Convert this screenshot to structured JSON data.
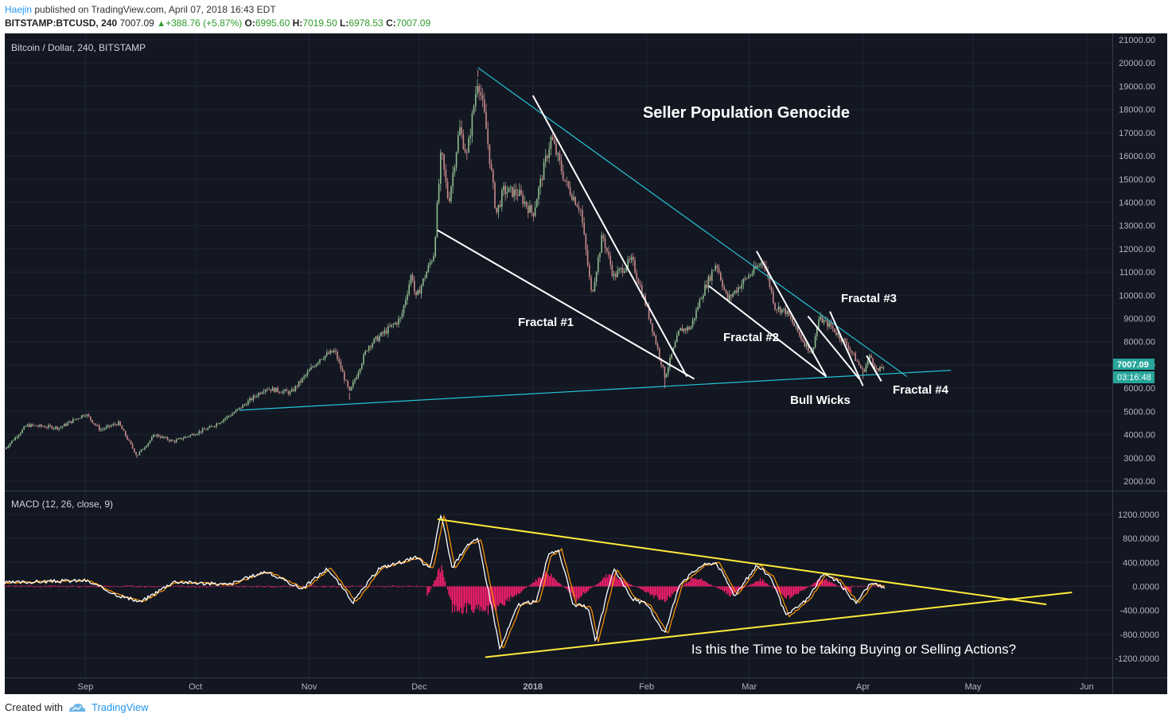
{
  "header": {
    "author": "Haejin",
    "published_text": "published on TradingView.com, April 07, 2018 16:43 EDT",
    "symbol": "BITSTAMP:BTCUSD, 240",
    "last": "7007.09",
    "change": "+388.76 (+5.87%)",
    "open_label": "O:",
    "open": "6995.60",
    "high_label": "H:",
    "high": "7019.50",
    "low_label": "L:",
    "low": "6978.53",
    "close_label": "C:",
    "close": "7007.09"
  },
  "price_pane": {
    "legend": "Bitcoin / Dollar, 240, BITSTAMP",
    "title": "Seller Population Genocide",
    "last_price_tag": "7007.09",
    "countdown_tag": "03:16:48",
    "annotations": [
      "Fractal #1",
      "Fractal #2",
      "Fractal #3",
      "Fractal #4",
      "Bull Wicks"
    ]
  },
  "macd_pane": {
    "legend": "MACD (12, 26, close, 9)",
    "question": "Is this the Time to be taking Buying or Selling Actions?"
  },
  "footer": {
    "created_with": "Created with",
    "brand": "TradingView"
  },
  "colors": {
    "background": "#131722",
    "grid": "#1f2433",
    "candle_up": "#8fbc8f",
    "candle_down": "#c98b8b",
    "trend_white": "#ffffff",
    "trend_cyan": "#26c6da",
    "macd_triangle": "#ffeb3b",
    "macd_line": "#ffffff",
    "signal_line": "#ff9800",
    "histogram": "#ff1f6f",
    "last_price_tag": "#26a69a"
  },
  "chart_data": [
    {
      "type": "candlestick",
      "title": "Seller Population Genocide",
      "series_name": "Bitcoin / Dollar, 240, BITSTAMP",
      "x_tick_labels": [
        "Sep",
        "Oct",
        "Nov",
        "Dec",
        "2018",
        "Feb",
        "Mar",
        "Apr",
        "May",
        "Jun"
      ],
      "y_tick_labels": [
        "2000.00",
        "3000.00",
        "4000.00",
        "5000.00",
        "6000.00",
        "7000.00",
        "8000.00",
        "9000.00",
        "10000.00",
        "11000.00",
        "12000.00",
        "13000.00",
        "14000.00",
        "15000.00",
        "16000.00",
        "17000.00",
        "18000.00",
        "19000.00",
        "20000.00",
        "21000.00"
      ],
      "ylim": [
        1500,
        21000
      ],
      "grid": true,
      "path_points": [
        {
          "date": "2017-08-10",
          "price": 3400
        },
        {
          "date": "2017-08-16",
          "price": 4400
        },
        {
          "date": "2017-08-25",
          "price": 4300
        },
        {
          "date": "2017-09-01",
          "price": 4900
        },
        {
          "date": "2017-09-05",
          "price": 4200
        },
        {
          "date": "2017-09-10",
          "price": 4500
        },
        {
          "date": "2017-09-15",
          "price": 3100
        },
        {
          "date": "2017-09-20",
          "price": 4000
        },
        {
          "date": "2017-09-25",
          "price": 3700
        },
        {
          "date": "2017-10-05",
          "price": 4300
        },
        {
          "date": "2017-10-12",
          "price": 5000
        },
        {
          "date": "2017-10-20",
          "price": 6000
        },
        {
          "date": "2017-10-27",
          "price": 5800
        },
        {
          "date": "2017-11-04",
          "price": 7300
        },
        {
          "date": "2017-11-08",
          "price": 7600
        },
        {
          "date": "2017-11-12",
          "price": 5800
        },
        {
          "date": "2017-11-17",
          "price": 7800
        },
        {
          "date": "2017-11-26",
          "price": 9000
        },
        {
          "date": "2017-11-29",
          "price": 11000
        },
        {
          "date": "2017-11-30",
          "price": 9800
        },
        {
          "date": "2017-12-05",
          "price": 11800
        },
        {
          "date": "2017-12-07",
          "price": 16200
        },
        {
          "date": "2017-12-09",
          "price": 14000
        },
        {
          "date": "2017-12-12",
          "price": 17200
        },
        {
          "date": "2017-12-14",
          "price": 16000
        },
        {
          "date": "2017-12-17",
          "price": 19400
        },
        {
          "date": "2017-12-19",
          "price": 17500
        },
        {
          "date": "2017-12-22",
          "price": 13500
        },
        {
          "date": "2017-12-24",
          "price": 14500
        },
        {
          "date": "2017-12-28",
          "price": 14400
        },
        {
          "date": "2018-01-01",
          "price": 13500
        },
        {
          "date": "2018-01-06",
          "price": 16800
        },
        {
          "date": "2018-01-10",
          "price": 14800
        },
        {
          "date": "2018-01-14",
          "price": 13700
        },
        {
          "date": "2018-01-17",
          "price": 10000
        },
        {
          "date": "2018-01-20",
          "price": 12600
        },
        {
          "date": "2018-01-23",
          "price": 10800
        },
        {
          "date": "2018-01-28",
          "price": 11500
        },
        {
          "date": "2018-02-01",
          "price": 9500
        },
        {
          "date": "2018-02-06",
          "price": 6500
        },
        {
          "date": "2018-02-10",
          "price": 8500
        },
        {
          "date": "2018-02-13",
          "price": 8600
        },
        {
          "date": "2018-02-16",
          "price": 10000
        },
        {
          "date": "2018-02-20",
          "price": 11400
        },
        {
          "date": "2018-02-23",
          "price": 9800
        },
        {
          "date": "2018-02-28",
          "price": 10700
        },
        {
          "date": "2018-03-05",
          "price": 11500
        },
        {
          "date": "2018-03-08",
          "price": 9500
        },
        {
          "date": "2018-03-11",
          "price": 9300
        },
        {
          "date": "2018-03-15",
          "price": 8200
        },
        {
          "date": "2018-03-18",
          "price": 7500
        },
        {
          "date": "2018-03-20",
          "price": 9000
        },
        {
          "date": "2018-03-23",
          "price": 8700
        },
        {
          "date": "2018-03-28",
          "price": 7800
        },
        {
          "date": "2018-04-01",
          "price": 6700
        },
        {
          "date": "2018-04-03",
          "price": 7400
        },
        {
          "date": "2018-04-05",
          "price": 6700
        },
        {
          "date": "2018-04-07",
          "price": 7007.09
        }
      ],
      "wicks": [
        {
          "date": "2017-09-15",
          "price": 3000
        },
        {
          "date": "2017-11-12",
          "price": 5500
        },
        {
          "date": "2017-12-17",
          "price": 19700
        },
        {
          "date": "2018-02-06",
          "price": 6000
        },
        {
          "date": "2018-04-01",
          "price": 6400
        }
      ],
      "trendlines": [
        {
          "name": "cyan-top",
          "points": [
            {
              "date": "2017-12-17",
              "price": 19800
            },
            {
              "date": "2018-04-13",
              "price": 6500
            }
          ]
        },
        {
          "name": "cyan-bottom",
          "points": [
            {
              "date": "2017-10-13",
              "price": 5050
            },
            {
              "date": "2018-04-25",
              "price": 6770
            }
          ]
        },
        {
          "name": "fractal1-lower",
          "points": [
            {
              "date": "2017-12-06",
              "price": 12800
            },
            {
              "date": "2018-02-14",
              "price": 6400
            }
          ]
        },
        {
          "name": "fractal1-upper",
          "points": [
            {
              "date": "2018-01-01",
              "price": 18600
            },
            {
              "date": "2018-02-12",
              "price": 6500
            }
          ]
        },
        {
          "name": "fractal2-lower",
          "points": [
            {
              "date": "2018-02-18",
              "price": 10400
            },
            {
              "date": "2018-03-22",
              "price": 6500
            }
          ]
        },
        {
          "name": "fractal2-upper",
          "points": [
            {
              "date": "2018-03-03",
              "price": 11900
            },
            {
              "date": "2018-03-22",
              "price": 6500
            }
          ]
        },
        {
          "name": "fractal3-lower",
          "points": [
            {
              "date": "2018-03-17",
              "price": 9100
            },
            {
              "date": "2018-03-31",
              "price": 6400
            }
          ]
        },
        {
          "name": "fractal3-upper",
          "points": [
            {
              "date": "2018-03-23",
              "price": 9300
            },
            {
              "date": "2018-04-01",
              "price": 6100
            }
          ]
        },
        {
          "name": "fractal4-lower",
          "points": [
            {
              "date": "2018-04-02",
              "price": 7400
            },
            {
              "date": "2018-04-06",
              "price": 6300
            }
          ]
        },
        {
          "name": "fractal4-upper",
          "points": [
            {
              "date": "2018-04-03",
              "price": 7100
            },
            {
              "date": "2018-04-06",
              "price": 6300
            }
          ]
        }
      ],
      "annotations": [
        {
          "text": "Fractal #1",
          "date": "2018-01-01",
          "price": 8850
        },
        {
          "text": "Fractal #2",
          "date": "2018-02-27",
          "price": 8200
        },
        {
          "text": "Fractal #3",
          "date": "2018-03-29",
          "price": 9800
        },
        {
          "text": "Fractal #4",
          "date": "2018-04-12",
          "price": 5950
        },
        {
          "text": "Bull Wicks",
          "date": "2018-03-20",
          "price": 5500
        },
        {
          "text": "Seller Population Genocide",
          "date": "2018-02-22",
          "price": 17950
        }
      ]
    },
    {
      "type": "line",
      "series_name": "MACD (12, 26, close, 9)",
      "y_tick_labels": [
        "1200.0000",
        "800.0000",
        "400.0000",
        "0.0000",
        "-400.0000",
        "-800.0000",
        "-1200.0000"
      ],
      "ylim": [
        -1650,
        1450
      ],
      "grid": true,
      "macd_points": [
        {
          "date": "2017-08-10",
          "v": 60
        },
        {
          "date": "2017-08-20",
          "v": 80
        },
        {
          "date": "2017-09-01",
          "v": 100
        },
        {
          "date": "2017-09-10",
          "v": -150
        },
        {
          "date": "2017-09-16",
          "v": -260
        },
        {
          "date": "2017-09-25",
          "v": 80
        },
        {
          "date": "2017-10-10",
          "v": 30
        },
        {
          "date": "2017-10-20",
          "v": 250
        },
        {
          "date": "2017-10-30",
          "v": -40
        },
        {
          "date": "2017-11-06",
          "v": 300
        },
        {
          "date": "2017-11-13",
          "v": -260
        },
        {
          "date": "2017-11-20",
          "v": 300
        },
        {
          "date": "2017-11-30",
          "v": 480
        },
        {
          "date": "2017-12-04",
          "v": 300
        },
        {
          "date": "2017-12-07",
          "v": 1220
        },
        {
          "date": "2017-12-10",
          "v": 300
        },
        {
          "date": "2017-12-14",
          "v": 700
        },
        {
          "date": "2017-12-17",
          "v": 780
        },
        {
          "date": "2017-12-21",
          "v": -400
        },
        {
          "date": "2017-12-23",
          "v": -1050
        },
        {
          "date": "2017-12-28",
          "v": -300
        },
        {
          "date": "2018-01-02",
          "v": -250
        },
        {
          "date": "2018-01-05",
          "v": 500
        },
        {
          "date": "2018-01-08",
          "v": 620
        },
        {
          "date": "2018-01-12",
          "v": -300
        },
        {
          "date": "2018-01-16",
          "v": -350
        },
        {
          "date": "2018-01-18",
          "v": -920
        },
        {
          "date": "2018-01-23",
          "v": 300
        },
        {
          "date": "2018-01-28",
          "v": -200
        },
        {
          "date": "2018-02-01",
          "v": -300
        },
        {
          "date": "2018-02-06",
          "v": -780
        },
        {
          "date": "2018-02-10",
          "v": 50
        },
        {
          "date": "2018-02-16",
          "v": 350
        },
        {
          "date": "2018-02-20",
          "v": 400
        },
        {
          "date": "2018-02-25",
          "v": -150
        },
        {
          "date": "2018-03-03",
          "v": 350
        },
        {
          "date": "2018-03-07",
          "v": 150
        },
        {
          "date": "2018-03-11",
          "v": -500
        },
        {
          "date": "2018-03-17",
          "v": -200
        },
        {
          "date": "2018-03-21",
          "v": 200
        },
        {
          "date": "2018-03-25",
          "v": 100
        },
        {
          "date": "2018-03-30",
          "v": -280
        },
        {
          "date": "2018-04-03",
          "v": 50
        },
        {
          "date": "2018-04-07",
          "v": -20
        }
      ],
      "histogram": [
        {
          "date": "2017-12-03",
          "v": -200
        },
        {
          "date": "2017-12-07",
          "v": 350
        },
        {
          "date": "2017-12-10",
          "v": -380
        },
        {
          "date": "2017-12-22",
          "v": -400
        },
        {
          "date": "2018-01-05",
          "v": 250
        },
        {
          "date": "2018-01-13",
          "v": -220
        },
        {
          "date": "2018-01-22",
          "v": 220
        },
        {
          "date": "2018-02-06",
          "v": -260
        },
        {
          "date": "2018-02-14",
          "v": 180
        },
        {
          "date": "2018-02-24",
          "v": -150
        },
        {
          "date": "2018-03-04",
          "v": 130
        },
        {
          "date": "2018-03-12",
          "v": -220
        },
        {
          "date": "2018-03-21",
          "v": 150
        },
        {
          "date": "2018-03-29",
          "v": -120
        }
      ],
      "triangle": [
        {
          "name": "upper",
          "points": [
            {
              "date": "2017-12-06",
              "v": 1120
            },
            {
              "date": "2018-05-21",
              "v": -300
            }
          ]
        },
        {
          "name": "lower",
          "points": [
            {
              "date": "2017-12-19",
              "v": -1180
            },
            {
              "date": "2018-05-28",
              "v": -100
            }
          ]
        }
      ]
    }
  ]
}
